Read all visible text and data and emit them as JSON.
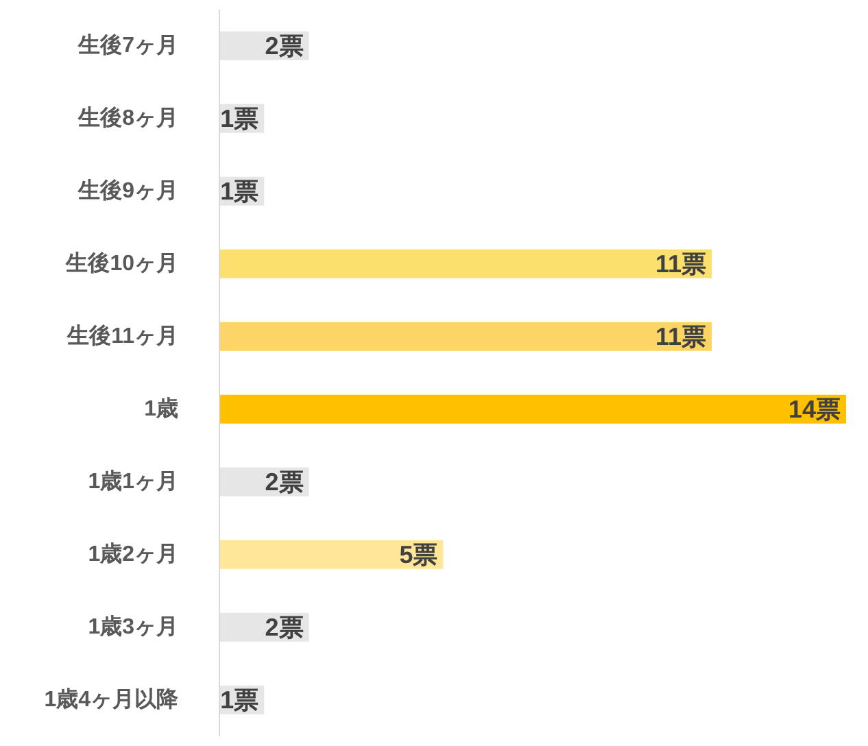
{
  "chart_data": {
    "type": "bar",
    "orientation": "horizontal",
    "categories": [
      "生後7ヶ月",
      "生後8ヶ月",
      "生後9ヶ月",
      "生後10ヶ月",
      "生後11ヶ月",
      "1歳",
      "1歳1ヶ月",
      "1歳2ヶ月",
      "1歳3ヶ月",
      "1歳4ヶ月以降"
    ],
    "values": [
      2,
      1,
      1,
      11,
      11,
      14,
      2,
      5,
      2,
      1
    ],
    "colors": [
      "#e6e6e6",
      "#e6e6e6",
      "#e6e6e6",
      "#fbe06e",
      "#fdd567",
      "#ffc000",
      "#e6e6e6",
      "#ffe699",
      "#e6e6e6",
      "#e6e6e6"
    ],
    "value_labels": [
      "2票",
      "1票",
      "1票",
      "11票",
      "11票",
      "14票",
      "2票",
      "5票",
      "2票",
      "1票"
    ]
  }
}
